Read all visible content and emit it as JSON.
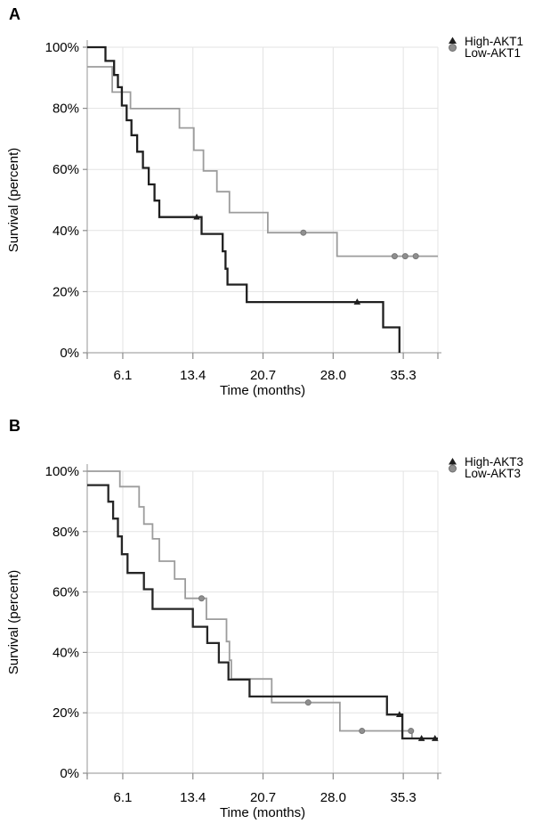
{
  "figure": {
    "description": "Two-panel Kaplan-Meier survival curves",
    "panel_labels": [
      "A",
      "B"
    ]
  },
  "chart_data": [
    {
      "type": "line",
      "subtype": "kaplan-meier-step",
      "panel_label": "A",
      "title": "",
      "xlabel": "Time (months)",
      "ylabel": "Survival (percent)",
      "xlim": [
        2.4,
        38.9
      ],
      "ylim": [
        0,
        100
      ],
      "grid": true,
      "legend_position": "outside-top-right",
      "x_tick_values": [
        6.1,
        13.4,
        20.7,
        28.0,
        35.3
      ],
      "x_tick_labels": [
        "6.1",
        "13.4",
        "20.7",
        "28.0",
        "35.3"
      ],
      "y_tick_values": [
        0,
        20,
        40,
        60,
        80,
        100
      ],
      "y_tick_labels": [
        "0%",
        "20%",
        "40%",
        "60%",
        "80%",
        "100%"
      ],
      "legend": [
        {
          "label": "High-AKT1",
          "marker": "triangle",
          "color": "#1f1f1f"
        },
        {
          "label": "Low-AKT1",
          "marker": "circle",
          "color": "#8f8f8f"
        }
      ],
      "series": [
        {
          "name": "Low-AKT1",
          "color": "#9c9c9c",
          "marker": "circle",
          "marker_color": "#8f8f8f",
          "steps": [
            [
              2.4,
              93.6
            ],
            [
              5.0,
              85.3
            ],
            [
              6.9,
              79.9
            ],
            [
              12.0,
              73.6
            ],
            [
              13.5,
              66.3
            ],
            [
              14.5,
              59.5
            ],
            [
              15.9,
              52.7
            ],
            [
              17.2,
              45.9
            ],
            [
              21.2,
              39.3
            ],
            [
              28.4,
              31.6
            ]
          ],
          "censored": [
            [
              24.9,
              39.3
            ],
            [
              34.4,
              31.6
            ],
            [
              35.5,
              31.6
            ],
            [
              36.6,
              31.6
            ]
          ]
        },
        {
          "name": "High-AKT1",
          "color": "#1f1f1f",
          "marker": "triangle",
          "marker_color": "#1f1f1f",
          "steps": [
            [
              2.4,
              100
            ],
            [
              4.3,
              95.5
            ],
            [
              5.2,
              90.9
            ],
            [
              5.6,
              86.9
            ],
            [
              6.0,
              80.9
            ],
            [
              6.5,
              76.1
            ],
            [
              7.0,
              71.2
            ],
            [
              7.6,
              65.8
            ],
            [
              8.2,
              60.5
            ],
            [
              8.8,
              55.1
            ],
            [
              9.4,
              49.8
            ],
            [
              9.9,
              44.4
            ],
            [
              14.3,
              38.9
            ],
            [
              16.5,
              33.2
            ],
            [
              16.8,
              27.5
            ],
            [
              17.0,
              22.3
            ],
            [
              19.0,
              16.6
            ],
            [
              33.2,
              8.3
            ],
            [
              34.9,
              0
            ]
          ],
          "censored": [
            [
              13.8,
              44.4
            ],
            [
              30.5,
              16.6
            ]
          ]
        }
      ]
    },
    {
      "type": "line",
      "subtype": "kaplan-meier-step",
      "panel_label": "B",
      "title": "",
      "xlabel": "Time (months)",
      "ylabel": "Survival (percent)",
      "xlim": [
        2.4,
        38.9
      ],
      "ylim": [
        0,
        100
      ],
      "grid": true,
      "legend_position": "outside-top-right",
      "x_tick_values": [
        6.1,
        13.4,
        20.7,
        28.0,
        35.3
      ],
      "x_tick_labels": [
        "6.1",
        "13.4",
        "20.7",
        "28.0",
        "35.3"
      ],
      "y_tick_values": [
        0,
        20,
        40,
        60,
        80,
        100
      ],
      "y_tick_labels": [
        "0%",
        "20%",
        "40%",
        "60%",
        "80%",
        "100%"
      ],
      "legend": [
        {
          "label": "High-AKT3",
          "marker": "triangle",
          "color": "#1f1f1f"
        },
        {
          "label": "Low-AKT3",
          "marker": "circle",
          "color": "#8f8f8f"
        }
      ],
      "series": [
        {
          "name": "Low-AKT3",
          "color": "#9c9c9c",
          "marker": "circle",
          "marker_color": "#8f8f8f",
          "steps": [
            [
              2.4,
              100
            ],
            [
              5.8,
              94.9
            ],
            [
              7.8,
              88.2
            ],
            [
              8.3,
              82.5
            ],
            [
              9.2,
              77.6
            ],
            [
              9.9,
              70.2
            ],
            [
              11.5,
              64.3
            ],
            [
              12.6,
              57.9
            ],
            [
              14.8,
              51.0
            ],
            [
              16.9,
              43.6
            ],
            [
              17.2,
              37.4
            ],
            [
              17.4,
              31.2
            ],
            [
              21.6,
              23.4
            ],
            [
              28.7,
              14.0
            ],
            [
              36.2,
              11.5
            ]
          ],
          "censored": [
            [
              14.3,
              57.9
            ],
            [
              25.4,
              23.4
            ],
            [
              31.0,
              14.0
            ],
            [
              36.1,
              14.0
            ]
          ]
        },
        {
          "name": "High-AKT3",
          "color": "#262626",
          "marker": "triangle",
          "marker_color": "#1f1f1f",
          "steps": [
            [
              2.4,
              95.4
            ],
            [
              4.6,
              89.9
            ],
            [
              5.1,
              84.3
            ],
            [
              5.6,
              78.4
            ],
            [
              6.0,
              72.5
            ],
            [
              6.6,
              66.3
            ],
            [
              8.3,
              60.9
            ],
            [
              9.2,
              54.4
            ],
            [
              13.4,
              48.5
            ],
            [
              14.9,
              43.1
            ],
            [
              16.1,
              36.7
            ],
            [
              17.1,
              31.0
            ],
            [
              19.3,
              25.4
            ],
            [
              33.6,
              19.4
            ],
            [
              35.2,
              11.5
            ]
          ],
          "censored": [
            [
              34.9,
              19.4
            ],
            [
              37.2,
              11.5
            ],
            [
              38.6,
              11.5
            ]
          ]
        }
      ]
    }
  ]
}
